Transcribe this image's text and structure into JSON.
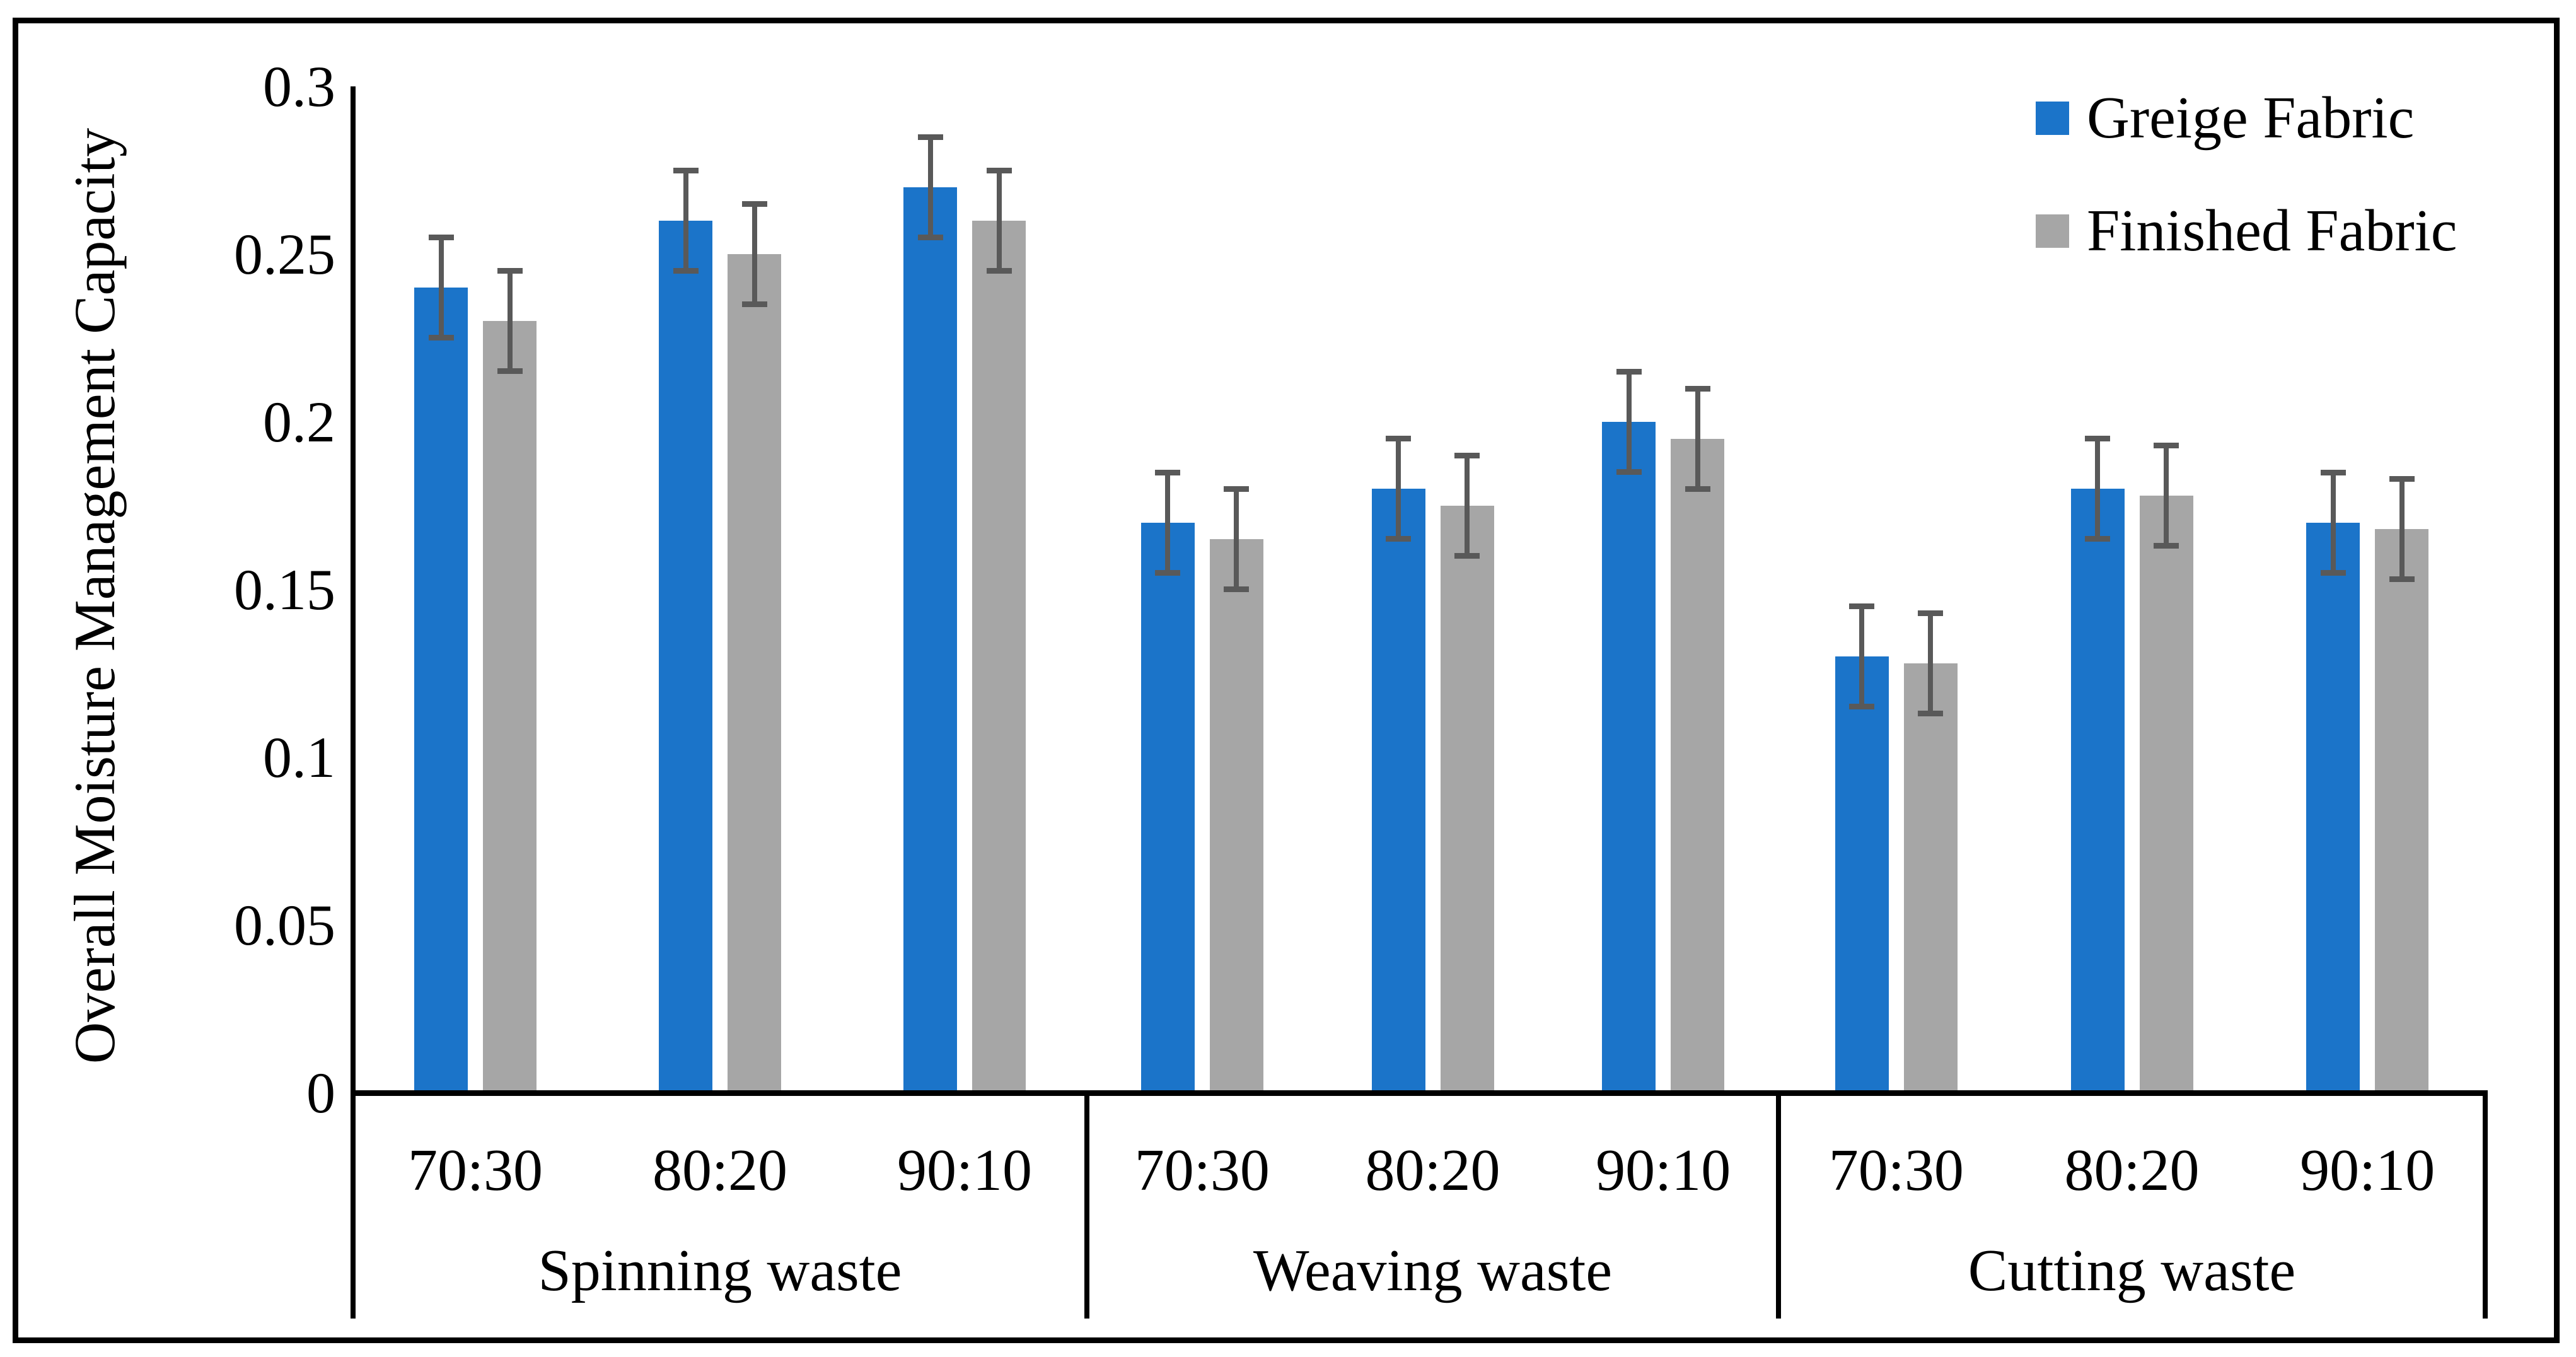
{
  "chart_data": {
    "type": "bar",
    "title": "",
    "ylabel": "Overall Moisture Management Capacity",
    "xlabel": "",
    "ylim": [
      0,
      0.3
    ],
    "yticks": [
      0,
      0.05,
      0.1,
      0.15,
      0.2,
      0.25,
      0.3
    ],
    "ytick_labels": [
      "0",
      "0.05",
      "0.1",
      "0.15",
      "0.2",
      "0.25",
      "0.3"
    ],
    "grid": false,
    "legend_position": "top-right",
    "groups": [
      {
        "label": "Spinning waste",
        "categories": [
          "70:30",
          "80:20",
          "90:10"
        ]
      },
      {
        "label": "Weaving waste",
        "categories": [
          "70:30",
          "80:20",
          "90:10"
        ]
      },
      {
        "label": "Cutting waste",
        "categories": [
          "70:30",
          "80:20",
          "90:10"
        ]
      }
    ],
    "series": [
      {
        "name": "Greige Fabric",
        "color": "#1B74C9",
        "values": [
          0.24,
          0.26,
          0.27,
          0.17,
          0.18,
          0.2,
          0.13,
          0.18,
          0.17
        ]
      },
      {
        "name": "Finished Fabric",
        "color": "#A6A6A6",
        "values": [
          0.23,
          0.25,
          0.26,
          0.165,
          0.175,
          0.195,
          0.128,
          0.178,
          0.168
        ]
      }
    ],
    "error_bars": {
      "value": 0.015,
      "color": "#595959"
    }
  }
}
